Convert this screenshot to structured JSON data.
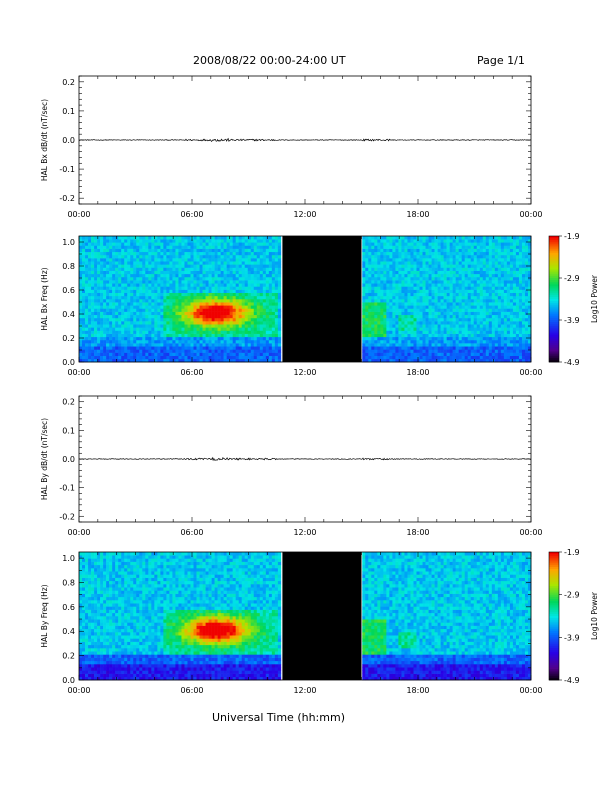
{
  "header": {
    "title": "2008/08/22  00:00-24:00 UT",
    "page": "Page 1/1"
  },
  "footer": {
    "xlabel": "Universal Time (hh:mm)"
  },
  "colorbar": {
    "label": "Log10 Power",
    "ticks": [
      "-1.9",
      "-2.9",
      "-3.9",
      "-4.9"
    ]
  },
  "chart_data": [
    {
      "type": "line",
      "ylabel": "HAL Bx dB/dt (nT/sec)",
      "xlim": [
        0,
        24
      ],
      "ylim": [
        -0.22,
        0.22
      ],
      "yticks": [
        "0.2",
        "0.1",
        "0.0",
        "-0.1",
        "-0.2"
      ],
      "xticks": [
        "00:00",
        "06:00",
        "12:00",
        "18:00",
        "00:00"
      ],
      "series": [
        {
          "values_note_free": true,
          "baseline": 0.0,
          "max_amplitude": 0.005
        }
      ]
    },
    {
      "type": "heatmap",
      "ylabel": "HAL Bx Freq (Hz)",
      "xlim": [
        0,
        24
      ],
      "ylim": [
        0,
        1.05
      ],
      "yticks": [
        "1.0",
        "0.8",
        "0.6",
        "0.4",
        "0.2",
        "0.0"
      ],
      "xticks": [
        "00:00",
        "06:00",
        "12:00",
        "18:00",
        "00:00"
      ],
      "clim": [
        -4.9,
        -1.9
      ],
      "data_gap_hours": [
        10.8,
        15.0
      ]
    },
    {
      "type": "line",
      "ylabel": "HAL By dB/dt (nT/sec)",
      "xlim": [
        0,
        24
      ],
      "ylim": [
        -0.22,
        0.22
      ],
      "yticks": [
        "0.2",
        "0.1",
        "0.0",
        "-0.1",
        "-0.2"
      ],
      "xticks": [
        "00:00",
        "06:00",
        "12:00",
        "18:00",
        "00:00"
      ],
      "series": [
        {
          "baseline": 0.0,
          "max_amplitude": 0.005
        }
      ]
    },
    {
      "type": "heatmap",
      "ylabel": "HAL By Freq (Hz)",
      "xlim": [
        0,
        24
      ],
      "ylim": [
        0,
        1.05
      ],
      "yticks": [
        "1.0",
        "0.8",
        "0.6",
        "0.4",
        "0.2",
        "0.0"
      ],
      "xticks": [
        "00:00",
        "06:00",
        "12:00",
        "18:00",
        "00:00"
      ],
      "clim": [
        -4.9,
        -1.9
      ],
      "data_gap_hours": [
        10.8,
        15.0
      ]
    }
  ]
}
